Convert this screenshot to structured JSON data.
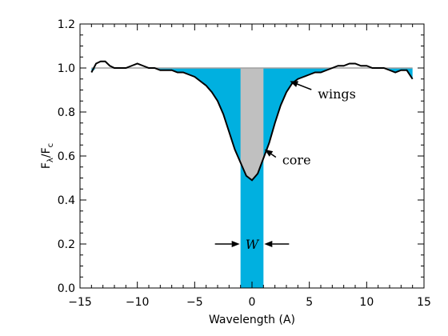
{
  "chart_data": {
    "type": "line",
    "xlabel": "Wavelength (A)",
    "ylabel_main": "F",
    "ylabel_sub1": "λ",
    "ylabel_sep": "/F",
    "ylabel_sub2": "c",
    "xlim": [
      -15,
      15
    ],
    "ylim": [
      0.0,
      1.2
    ],
    "xticks": [
      -15,
      -10,
      -5,
      0,
      5,
      10,
      15
    ],
    "xtick_labels": [
      "−15",
      "−10",
      "−5",
      "0",
      "5",
      "10",
      "15"
    ],
    "yticks": [
      0.0,
      0.2,
      0.4,
      0.6,
      0.8,
      1.0,
      1.2
    ],
    "ytick_labels": [
      "0.0",
      "0.2",
      "0.4",
      "0.6",
      "0.8",
      "1.0",
      "1.2"
    ],
    "continuum_level": 1.0,
    "equivalent_width_band": [
      -1.0,
      1.0
    ],
    "profile": {
      "x": [
        -14.0,
        -13.6,
        -13.2,
        -12.8,
        -12.4,
        -12.0,
        -11.5,
        -11.0,
        -10.5,
        -10.0,
        -9.5,
        -9.0,
        -8.5,
        -8.0,
        -7.5,
        -7.0,
        -6.5,
        -6.0,
        -5.5,
        -5.0,
        -4.5,
        -4.0,
        -3.5,
        -3.0,
        -2.5,
        -2.0,
        -1.5,
        -1.0,
        -0.5,
        0.0,
        0.5,
        1.0,
        1.5,
        2.0,
        2.5,
        3.0,
        3.5,
        4.0,
        4.5,
        5.0,
        5.5,
        6.0,
        6.5,
        7.0,
        7.5,
        8.0,
        8.5,
        9.0,
        9.5,
        10.0,
        10.5,
        11.0,
        11.5,
        12.0,
        12.5,
        13.0,
        13.5,
        14.0
      ],
      "y": [
        0.98,
        1.02,
        1.03,
        1.03,
        1.01,
        1.0,
        1.0,
        1.0,
        1.01,
        1.02,
        1.01,
        1.0,
        1.0,
        0.99,
        0.99,
        0.99,
        0.98,
        0.98,
        0.97,
        0.96,
        0.94,
        0.92,
        0.89,
        0.85,
        0.79,
        0.71,
        0.63,
        0.57,
        0.51,
        0.49,
        0.52,
        0.59,
        0.66,
        0.75,
        0.83,
        0.89,
        0.93,
        0.95,
        0.96,
        0.97,
        0.98,
        0.98,
        0.99,
        1.0,
        1.01,
        1.01,
        1.02,
        1.02,
        1.01,
        1.01,
        1.0,
        1.0,
        1.0,
        0.99,
        0.98,
        0.99,
        0.99,
        0.95
      ]
    },
    "annotations": {
      "wings": {
        "text": "wings",
        "x": 5.6,
        "y": 0.88,
        "arrow_to": [
          3.3,
          0.94
        ]
      },
      "core": {
        "text": "core",
        "x": 2.5,
        "y": 0.58,
        "arrow_to": [
          1.1,
          0.63
        ]
      },
      "width": {
        "text": "W",
        "x": 0.0,
        "y": 0.2
      }
    },
    "colors": {
      "continuum": "#a0a0a0",
      "continuum_accent": "#d08070",
      "wings_fill": "#00b0e0",
      "core_fill": "#c0c0c0",
      "profile_line": "#000000",
      "axes": "#000000"
    }
  }
}
